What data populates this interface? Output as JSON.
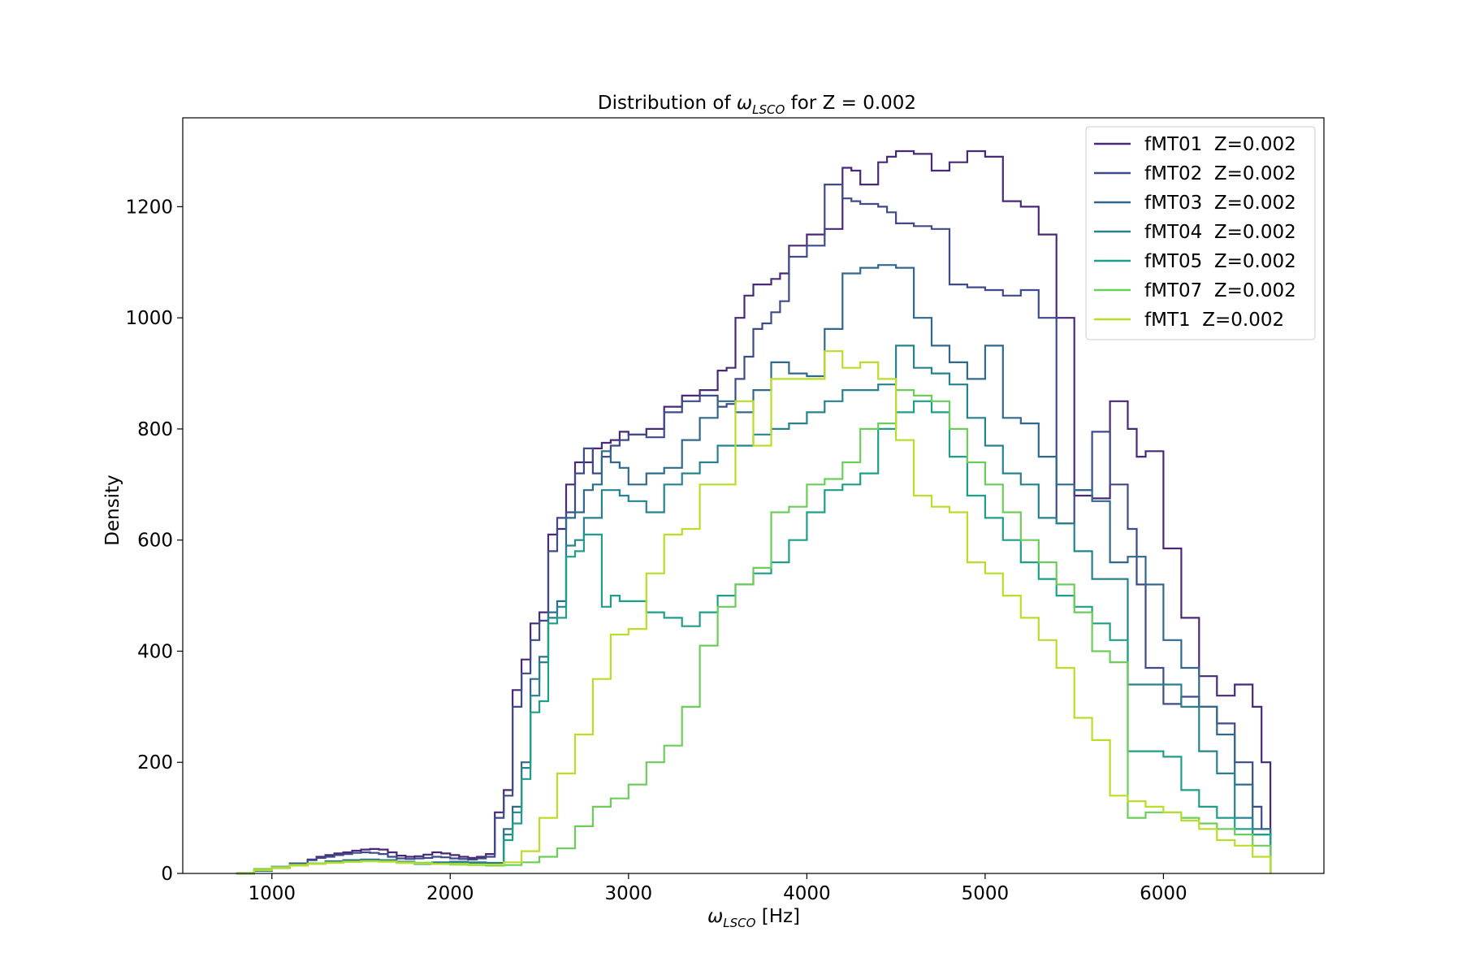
{
  "chart_data": {
    "type": "line",
    "subtype": "step-histogram",
    "title": {
      "pre": "Distribution of ",
      "sym": "ω",
      "sub": "LSCO",
      "post": " for Z = 0.002"
    },
    "xlabel": {
      "sym": "ω",
      "sub": "LSCO",
      "post": " [Hz]"
    },
    "ylabel": "Density",
    "xlim": [
      500,
      6900
    ],
    "ylim": [
      0,
      1360
    ],
    "xticks": [
      1000,
      2000,
      3000,
      4000,
      5000,
      6000
    ],
    "yticks": [
      0,
      200,
      400,
      600,
      800,
      1000,
      1200
    ],
    "legend_position": "top-right",
    "grid": false,
    "series": [
      {
        "name": "fMT01  Z=0.002",
        "color": "#482878",
        "x": [
          800,
          900,
          1000,
          1100,
          1200,
          1250,
          1300,
          1350,
          1400,
          1450,
          1500,
          1550,
          1600,
          1650,
          1700,
          1750,
          1800,
          1850,
          1900,
          1950,
          2000,
          2050,
          2100,
          2150,
          2200,
          2250,
          2300,
          2350,
          2400,
          2450,
          2500,
          2550,
          2600,
          2650,
          2700,
          2750,
          2800,
          2850,
          2900,
          2950,
          3000,
          3100,
          3200,
          3300,
          3400,
          3500,
          3550,
          3600,
          3650,
          3700,
          3750,
          3800,
          3850,
          3900,
          4000,
          4100,
          4200,
          4250,
          4300,
          4400,
          4450,
          4500,
          4600,
          4700,
          4800,
          4900,
          5000,
          5100,
          5200,
          5300,
          5400,
          5500,
          5600,
          5700,
          5800,
          5850,
          5900,
          6000,
          6100,
          6200,
          6300,
          6400,
          6500,
          6550,
          6600
        ],
        "y": [
          0,
          5,
          12,
          18,
          25,
          30,
          33,
          36,
          38,
          41,
          43,
          44,
          43,
          38,
          32,
          30,
          31,
          34,
          38,
          36,
          33,
          30,
          28,
          30,
          35,
          110,
          150,
          330,
          385,
          450,
          470,
          610,
          620,
          700,
          740,
          740,
          765,
          775,
          780,
          795,
          790,
          800,
          840,
          860,
          870,
          905,
          910,
          1000,
          1040,
          1060,
          1060,
          1070,
          1080,
          1130,
          1150,
          1160,
          1270,
          1265,
          1240,
          1280,
          1290,
          1300,
          1295,
          1265,
          1280,
          1300,
          1290,
          1210,
          1200,
          1150,
          1000,
          680,
          675,
          850,
          800,
          750,
          760,
          585,
          460,
          355,
          320,
          340,
          300,
          200,
          0
        ]
      },
      {
        "name": "fMT02  Z=0.002",
        "color": "#3e4a89",
        "x": [
          800,
          900,
          1000,
          1100,
          1200,
          1250,
          1300,
          1350,
          1400,
          1450,
          1500,
          1550,
          1600,
          1650,
          1700,
          1750,
          1800,
          1850,
          1900,
          1950,
          2000,
          2050,
          2100,
          2150,
          2200,
          2250,
          2300,
          2350,
          2400,
          2450,
          2500,
          2550,
          2600,
          2650,
          2700,
          2750,
          2800,
          2850,
          2900,
          2950,
          3000,
          3100,
          3200,
          3300,
          3400,
          3500,
          3550,
          3600,
          3650,
          3700,
          3750,
          3800,
          3850,
          3900,
          4000,
          4100,
          4200,
          4250,
          4300,
          4400,
          4450,
          4500,
          4600,
          4700,
          4800,
          4900,
          5000,
          5100,
          5200,
          5300,
          5400,
          5500,
          5600,
          5700,
          5800,
          5850,
          5900,
          6000,
          6100,
          6200,
          6300,
          6400,
          6500,
          6550,
          6600
        ],
        "y": [
          0,
          5,
          12,
          18,
          24,
          28,
          30,
          33,
          35,
          37,
          38,
          37,
          35,
          30,
          27,
          26,
          27,
          28,
          30,
          29,
          27,
          26,
          25,
          27,
          30,
          100,
          140,
          300,
          360,
          420,
          455,
          580,
          640,
          650,
          720,
          765,
          720,
          750,
          770,
          780,
          790,
          785,
          830,
          850,
          860,
          840,
          845,
          890,
          930,
          980,
          990,
          1010,
          1030,
          1110,
          1130,
          1240,
          1215,
          1210,
          1205,
          1200,
          1190,
          1170,
          1165,
          1160,
          1060,
          1055,
          1050,
          1040,
          1050,
          1000,
          630,
          690,
          795,
          700,
          620,
          520,
          370,
          305,
          318,
          300,
          270,
          200,
          120,
          80,
          0
        ]
      },
      {
        "name": "fMT03  Z=0.002",
        "color": "#31688e",
        "x": [
          800,
          900,
          1000,
          1100,
          1200,
          1300,
          1400,
          1500,
          1600,
          1700,
          1800,
          1900,
          2000,
          2100,
          2200,
          2300,
          2350,
          2400,
          2450,
          2500,
          2550,
          2600,
          2650,
          2700,
          2750,
          2800,
          2850,
          2900,
          2950,
          3000,
          3100,
          3200,
          3300,
          3400,
          3500,
          3600,
          3700,
          3800,
          3900,
          4000,
          4100,
          4200,
          4300,
          4400,
          4500,
          4600,
          4700,
          4800,
          4900,
          5000,
          5100,
          5200,
          5300,
          5400,
          5500,
          5600,
          5700,
          5800,
          5900,
          6000,
          6100,
          6200,
          6300,
          6400,
          6500,
          6600
        ],
        "y": [
          0,
          5,
          10,
          14,
          18,
          22,
          24,
          25,
          24,
          21,
          19,
          20,
          21,
          20,
          19,
          80,
          120,
          200,
          350,
          390,
          470,
          490,
          640,
          650,
          690,
          700,
          760,
          740,
          730,
          700,
          720,
          730,
          780,
          820,
          850,
          830,
          870,
          920,
          900,
          895,
          980,
          1080,
          1090,
          1095,
          1090,
          1000,
          950,
          920,
          890,
          950,
          820,
          810,
          750,
          700,
          690,
          670,
          560,
          570,
          520,
          420,
          370,
          300,
          250,
          160,
          80,
          0
        ]
      },
      {
        "name": "fMT04  Z=0.002",
        "color": "#26828e",
        "x": [
          800,
          900,
          1000,
          1100,
          1200,
          1300,
          1400,
          1500,
          1600,
          1700,
          1800,
          1900,
          2000,
          2100,
          2200,
          2300,
          2350,
          2400,
          2450,
          2500,
          2550,
          2600,
          2650,
          2700,
          2750,
          2800,
          2850,
          2900,
          2950,
          3000,
          3100,
          3200,
          3300,
          3400,
          3500,
          3600,
          3700,
          3800,
          3900,
          4000,
          4100,
          4200,
          4300,
          4400,
          4500,
          4600,
          4700,
          4800,
          4900,
          5000,
          5100,
          5200,
          5300,
          5400,
          5500,
          5600,
          5700,
          5800,
          5900,
          6000,
          6100,
          6200,
          6300,
          6400,
          6500,
          6600
        ],
        "y": [
          0,
          5,
          10,
          14,
          18,
          20,
          22,
          24,
          23,
          20,
          18,
          19,
          20,
          19,
          18,
          70,
          110,
          190,
          320,
          380,
          460,
          480,
          590,
          600,
          640,
          640,
          690,
          690,
          680,
          670,
          650,
          700,
          720,
          740,
          770,
          770,
          790,
          800,
          810,
          830,
          850,
          870,
          870,
          880,
          950,
          910,
          900,
          880,
          820,
          770,
          720,
          700,
          640,
          630,
          580,
          530,
          530,
          340,
          340,
          340,
          300,
          220,
          180,
          100,
          70,
          0
        ]
      },
      {
        "name": "fMT05  Z=0.002",
        "color": "#1f9e89",
        "x": [
          800,
          900,
          1000,
          1100,
          1200,
          1300,
          1400,
          1500,
          1600,
          1700,
          1800,
          1900,
          2000,
          2100,
          2200,
          2300,
          2350,
          2400,
          2450,
          2500,
          2550,
          2600,
          2650,
          2700,
          2750,
          2800,
          2850,
          2900,
          2950,
          3000,
          3100,
          3200,
          3300,
          3400,
          3500,
          3600,
          3700,
          3800,
          3900,
          4000,
          4100,
          4200,
          4300,
          4400,
          4500,
          4600,
          4700,
          4800,
          4900,
          5000,
          5100,
          5200,
          5300,
          5400,
          5500,
          5600,
          5700,
          5800,
          5900,
          6000,
          6100,
          6200,
          6300,
          6400,
          6500,
          6600
        ],
        "y": [
          0,
          6,
          11,
          15,
          18,
          20,
          22,
          23,
          22,
          19,
          17,
          17,
          18,
          17,
          16,
          60,
          90,
          170,
          290,
          310,
          450,
          460,
          570,
          580,
          610,
          610,
          480,
          500,
          490,
          490,
          470,
          460,
          445,
          470,
          500,
          520,
          540,
          560,
          600,
          650,
          690,
          700,
          720,
          800,
          830,
          850,
          830,
          750,
          680,
          640,
          600,
          560,
          530,
          500,
          480,
          450,
          420,
          220,
          220,
          210,
          150,
          120,
          100,
          80,
          70,
          0
        ]
      },
      {
        "name": "fMT07  Z=0.002",
        "color": "#6ccd5a",
        "x": [
          800,
          900,
          1000,
          1100,
          1200,
          1300,
          1400,
          1500,
          1600,
          1700,
          1800,
          1900,
          2000,
          2100,
          2200,
          2300,
          2400,
          2500,
          2600,
          2700,
          2800,
          2900,
          3000,
          3100,
          3200,
          3300,
          3400,
          3500,
          3600,
          3700,
          3800,
          3900,
          4000,
          4100,
          4200,
          4300,
          4400,
          4500,
          4600,
          4700,
          4800,
          4900,
          5000,
          5100,
          5200,
          5300,
          5400,
          5500,
          5600,
          5700,
          5800,
          5900,
          6000,
          6100,
          6200,
          6300,
          6400,
          6500,
          6600
        ],
        "y": [
          0,
          8,
          12,
          16,
          18,
          20,
          21,
          22,
          22,
          20,
          19,
          17,
          16,
          15,
          14,
          15,
          20,
          30,
          45,
          85,
          120,
          135,
          160,
          200,
          230,
          300,
          410,
          480,
          520,
          550,
          650,
          660,
          700,
          710,
          740,
          800,
          810,
          870,
          860,
          850,
          800,
          740,
          700,
          650,
          600,
          560,
          520,
          470,
          400,
          380,
          100,
          110,
          110,
          100,
          90,
          80,
          70,
          50,
          0
        ]
      },
      {
        "name": "fMT1  Z=0.002",
        "color": "#b8de29",
        "x": [
          800,
          900,
          1000,
          1100,
          1200,
          1300,
          1400,
          1500,
          1600,
          1700,
          1800,
          1900,
          2000,
          2100,
          2200,
          2300,
          2400,
          2500,
          2600,
          2700,
          2800,
          2900,
          3000,
          3100,
          3200,
          3300,
          3400,
          3500,
          3600,
          3700,
          3800,
          3900,
          4000,
          4100,
          4200,
          4300,
          4400,
          4500,
          4600,
          4700,
          4800,
          4900,
          5000,
          5100,
          5200,
          5300,
          5400,
          5500,
          5600,
          5700,
          5800,
          5900,
          6000,
          6100,
          6200,
          6300,
          6400,
          6500,
          6600
        ],
        "y": [
          0,
          6,
          10,
          14,
          17,
          19,
          21,
          22,
          21,
          19,
          18,
          17,
          17,
          16,
          16,
          20,
          40,
          100,
          180,
          250,
          350,
          430,
          440,
          540,
          610,
          620,
          700,
          700,
          850,
          770,
          890,
          890,
          890,
          940,
          910,
          920,
          890,
          780,
          680,
          660,
          650,
          560,
          540,
          500,
          460,
          420,
          370,
          280,
          240,
          140,
          130,
          120,
          110,
          95,
          80,
          60,
          50,
          30,
          0
        ]
      }
    ]
  }
}
